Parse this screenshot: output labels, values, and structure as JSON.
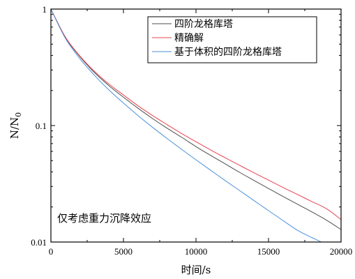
{
  "chart_data": {
    "type": "line",
    "xlabel": "时间/s",
    "ylabel": "N/N",
    "ylabel_subscript": "0",
    "xlim": [
      0,
      20000
    ],
    "ylim": [
      0.01,
      1
    ],
    "yscale": "log",
    "x_ticks": [
      0,
      5000,
      10000,
      15000,
      20000
    ],
    "x_tick_labels": [
      "0",
      "5000",
      "10000",
      "15000",
      "20000"
    ],
    "y_ticks": [
      0.01,
      0.1,
      1
    ],
    "y_tick_labels": [
      "0.01",
      "0.1",
      "1"
    ],
    "grid": false,
    "legend_position": "top-right",
    "annotation": "仅考虑重力沉降效应",
    "x": [
      0,
      1000,
      2000,
      3000,
      4000,
      5000,
      6000,
      7000,
      8000,
      9000,
      10000,
      11000,
      12000,
      13000,
      14000,
      15000,
      16000,
      17000,
      18000,
      19000,
      20000
    ],
    "series": [
      {
        "name": "四阶龙格库塔",
        "color": "#4d4d4d",
        "values": [
          1.0,
          0.57,
          0.39,
          0.285,
          0.22,
          0.175,
          0.141,
          0.115,
          0.095,
          0.0795,
          0.066,
          0.0555,
          0.047,
          0.0397,
          0.0338,
          0.0288,
          0.0246,
          0.0211,
          0.0181,
          0.0154,
          0.0128
        ]
      },
      {
        "name": "精确解",
        "color": "#e8434d",
        "values": [
          1.0,
          0.575,
          0.395,
          0.292,
          0.227,
          0.183,
          0.148,
          0.122,
          0.102,
          0.0856,
          0.0726,
          0.0618,
          0.053,
          0.0456,
          0.0393,
          0.034,
          0.0294,
          0.0256,
          0.0222,
          0.0193,
          0.0156
        ]
      },
      {
        "name": "基于体积的四阶龙格库塔",
        "color": "#4a90d9",
        "values": [
          1.0,
          0.56,
          0.375,
          0.27,
          0.202,
          0.156,
          0.122,
          0.0967,
          0.0775,
          0.0626,
          0.0508,
          0.0414,
          0.0338,
          0.0277,
          0.0227,
          0.0186,
          0.0153,
          0.0126,
          0.0109,
          0.0096,
          0.0089
        ]
      }
    ]
  }
}
